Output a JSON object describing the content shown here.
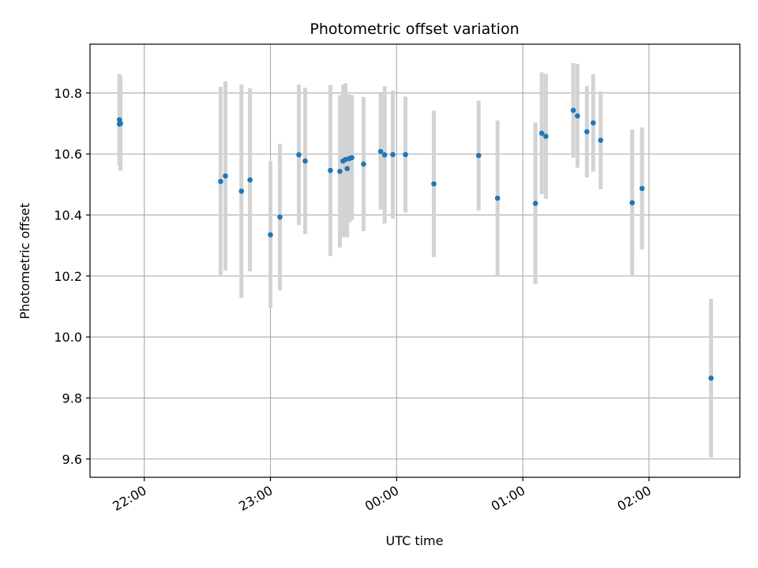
{
  "chart_data": {
    "type": "scatter",
    "title": "Photometric offset variation",
    "xlabel": "UTC time",
    "ylabel": "Photometric offset",
    "x_unit": "hours after 22:00 UTC",
    "xlim": [
      -0.43,
      4.72
    ],
    "ylim": [
      9.54,
      10.96
    ],
    "grid": true,
    "x_ticks": [
      {
        "value": 0,
        "label": "22:00"
      },
      {
        "value": 1,
        "label": "23:00"
      },
      {
        "value": 2,
        "label": "00:00"
      },
      {
        "value": 3,
        "label": "01:00"
      },
      {
        "value": 4,
        "label": "02:00"
      }
    ],
    "y_ticks": [
      {
        "value": 9.6,
        "label": "9.6"
      },
      {
        "value": 9.8,
        "label": "9.8"
      },
      {
        "value": 10.0,
        "label": "10.0"
      },
      {
        "value": 10.2,
        "label": "10.2"
      },
      {
        "value": 10.4,
        "label": "10.4"
      },
      {
        "value": 10.6,
        "label": "10.6"
      },
      {
        "value": 10.8,
        "label": "10.8"
      }
    ],
    "colors": {
      "points": "#1f77b4",
      "errorbars": "#d3d3d3",
      "grid": "#b0b0b0"
    },
    "points": [
      {
        "x": -0.197,
        "y": 10.712,
        "err": 0.15
      },
      {
        "x": -0.197,
        "y": 10.698,
        "err": 0.135
      },
      {
        "x": -0.188,
        "y": 10.7,
        "err": 0.155
      },
      {
        "x": 0.605,
        "y": 10.51,
        "err": 0.31
      },
      {
        "x": 0.643,
        "y": 10.528,
        "err": 0.31
      },
      {
        "x": 0.77,
        "y": 10.478,
        "err": 0.35
      },
      {
        "x": 0.838,
        "y": 10.515,
        "err": 0.3
      },
      {
        "x": 1.0,
        "y": 10.335,
        "err": 0.24
      },
      {
        "x": 1.075,
        "y": 10.393,
        "err": 0.24
      },
      {
        "x": 1.225,
        "y": 10.597,
        "err": 0.23
      },
      {
        "x": 1.275,
        "y": 10.577,
        "err": 0.24
      },
      {
        "x": 1.475,
        "y": 10.546,
        "err": 0.28
      },
      {
        "x": 1.55,
        "y": 10.543,
        "err": 0.25
      },
      {
        "x": 1.575,
        "y": 10.577,
        "err": 0.25
      },
      {
        "x": 1.595,
        "y": 10.582,
        "err": 0.25
      },
      {
        "x": 1.608,
        "y": 10.552,
        "err": 0.225
      },
      {
        "x": 1.625,
        "y": 10.585,
        "err": 0.21
      },
      {
        "x": 1.645,
        "y": 10.588,
        "err": 0.205
      },
      {
        "x": 1.738,
        "y": 10.567,
        "err": 0.22
      },
      {
        "x": 1.873,
        "y": 10.608,
        "err": 0.19
      },
      {
        "x": 1.905,
        "y": 10.597,
        "err": 0.225
      },
      {
        "x": 1.97,
        "y": 10.598,
        "err": 0.21
      },
      {
        "x": 2.07,
        "y": 10.598,
        "err": 0.19
      },
      {
        "x": 2.295,
        "y": 10.502,
        "err": 0.24
      },
      {
        "x": 2.65,
        "y": 10.595,
        "err": 0.18
      },
      {
        "x": 2.8,
        "y": 10.455,
        "err": 0.255
      },
      {
        "x": 3.1,
        "y": 10.438,
        "err": 0.265
      },
      {
        "x": 3.15,
        "y": 10.668,
        "err": 0.2
      },
      {
        "x": 3.183,
        "y": 10.658,
        "err": 0.205
      },
      {
        "x": 3.4,
        "y": 10.743,
        "err": 0.155
      },
      {
        "x": 3.433,
        "y": 10.725,
        "err": 0.17
      },
      {
        "x": 3.508,
        "y": 10.673,
        "err": 0.15
      },
      {
        "x": 3.558,
        "y": 10.702,
        "err": 0.16
      },
      {
        "x": 3.617,
        "y": 10.645,
        "err": 0.16
      },
      {
        "x": 3.867,
        "y": 10.44,
        "err": 0.24
      },
      {
        "x": 3.945,
        "y": 10.487,
        "err": 0.2
      },
      {
        "x": 4.492,
        "y": 9.865,
        "err": 0.26
      }
    ]
  }
}
